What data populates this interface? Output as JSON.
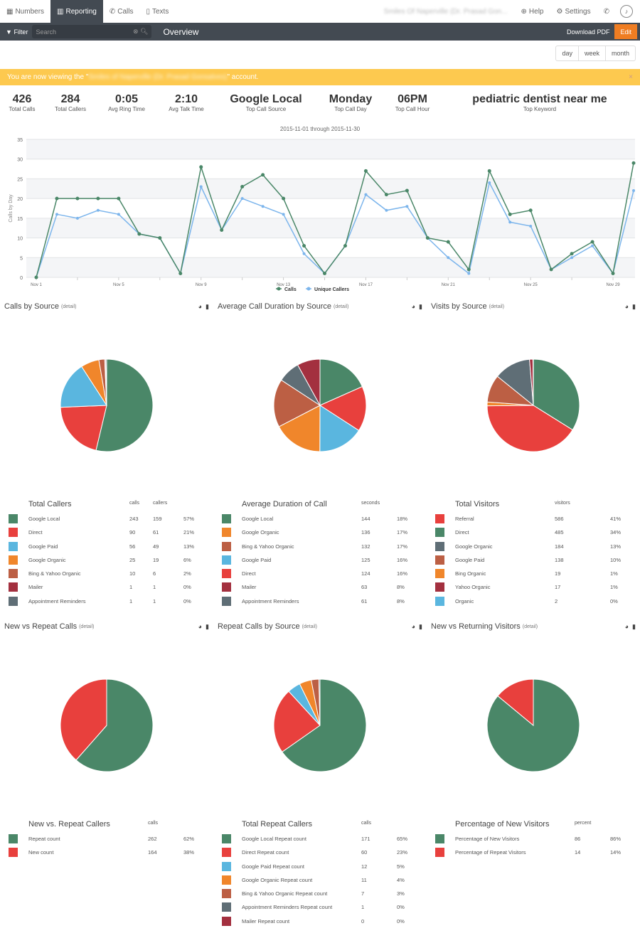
{
  "nav": {
    "items": [
      {
        "icon": "grid-icon",
        "label": "Numbers"
      },
      {
        "icon": "bar-chart-icon",
        "label": "Reporting",
        "active": true
      },
      {
        "icon": "phone-icon",
        "label": "Calls"
      },
      {
        "icon": "mobile-icon",
        "label": "Texts"
      }
    ],
    "account": "Smiles Of Naperville (Dr. Prasad Gon...",
    "help": "Help",
    "settings": "Settings"
  },
  "toolbar": {
    "filter": "Filter",
    "search_placeholder": "Search",
    "title": "Overview",
    "download": "Download PDF",
    "edit": "Edit"
  },
  "range": [
    "day",
    "week",
    "month"
  ],
  "banner": {
    "pre": "You are now viewing the \"",
    "account": "Smiles of Naperville (Dr. Prasad Gonsalves)",
    "post": "\" account.",
    "close": "×"
  },
  "stats": [
    {
      "v": "426",
      "l": "Total Calls"
    },
    {
      "v": "284",
      "l": "Total Callers"
    },
    {
      "v": "0:05",
      "l": "Avg Ring Time"
    },
    {
      "v": "2:10",
      "l": "Avg Talk Time"
    },
    {
      "v": "Google Local",
      "l": "Top Call Source"
    },
    {
      "v": "Monday",
      "l": "Top Call Day"
    },
    {
      "v": "06PM",
      "l": "Top Call Hour"
    },
    {
      "v": "pediatric dentist near me",
      "l": "Top Keyword"
    }
  ],
  "colors": {
    "green": "#4a8768",
    "red": "#e8403d",
    "blue": "#5ab6df",
    "orange": "#f0862b",
    "brown": "#bc5f44",
    "darkred": "#a3303f",
    "gray": "#5f6e76",
    "calls_line": "#4a8768",
    "unique_line": "#7cb5ec"
  },
  "chart_data": {
    "type": "line",
    "title": "2015-11-01 through 2015-11-30",
    "ylabel": "Calls by Day",
    "ylim": [
      0,
      35
    ],
    "yticks": [
      0,
      5,
      10,
      15,
      20,
      25,
      30,
      35
    ],
    "x": [
      "Nov 1",
      "Nov 2",
      "Nov 3",
      "Nov 4",
      "Nov 5",
      "Nov 6",
      "Nov 7",
      "Nov 8",
      "Nov 9",
      "Nov 10",
      "Nov 11",
      "Nov 12",
      "Nov 13",
      "Nov 14",
      "Nov 15",
      "Nov 16",
      "Nov 17",
      "Nov 18",
      "Nov 19",
      "Nov 20",
      "Nov 21",
      "Nov 22",
      "Nov 23",
      "Nov 24",
      "Nov 25",
      "Nov 26",
      "Nov 27",
      "Nov 28",
      "Nov 29",
      "Nov 30"
    ],
    "xticks": [
      "Nov 1",
      "Nov 5",
      "Nov 9",
      "Nov 13",
      "Nov 17",
      "Nov 21",
      "Nov 25",
      "Nov 29"
    ],
    "legend": "bottom",
    "grid": true,
    "series": [
      {
        "name": "Calls",
        "values": [
          0,
          20,
          20,
          20,
          20,
          11,
          10,
          1,
          28,
          12,
          23,
          26,
          20,
          8,
          1,
          8,
          27,
          21,
          22,
          10,
          9,
          2,
          27,
          16,
          17,
          2,
          6,
          9,
          1,
          29
        ]
      },
      {
        "name": "Unique Callers",
        "values": [
          0,
          16,
          15,
          17,
          16,
          11,
          10,
          1,
          23,
          12,
          20,
          18,
          16,
          6,
          1,
          8,
          21,
          17,
          18,
          10,
          5,
          1,
          24,
          14,
          13,
          2,
          5,
          8,
          1,
          22
        ]
      }
    ]
  },
  "detail": "(detail)",
  "panels": [
    {
      "title": "Calls by Source",
      "table": "Total Callers",
      "cols": [
        "calls",
        "callers"
      ],
      "rows": [
        [
          "green",
          "Google Local",
          "243",
          "159",
          "57%"
        ],
        [
          "red",
          "Direct",
          "90",
          "61",
          "21%"
        ],
        [
          "blue",
          "Google Paid",
          "56",
          "49",
          "13%"
        ],
        [
          "orange",
          "Google Organic",
          "25",
          "19",
          "6%"
        ],
        [
          "brown",
          "Bing & Yahoo Organic",
          "10",
          "6",
          "2%"
        ],
        [
          "darkred",
          "Mailer",
          "1",
          "1",
          "0%"
        ],
        [
          "gray",
          "Appointment Reminders",
          "1",
          "1",
          "0%"
        ]
      ],
      "pie_order": [
        0,
        1,
        2,
        3,
        4,
        5,
        6
      ]
    },
    {
      "title": "Average Call Duration by Source",
      "table": "Average Duration of Call",
      "cols": [
        "seconds"
      ],
      "rows": [
        [
          "green",
          "Google Local",
          "144",
          "18%"
        ],
        [
          "orange",
          "Google Organic",
          "136",
          "17%"
        ],
        [
          "brown",
          "Bing & Yahoo Organic",
          "132",
          "17%"
        ],
        [
          "blue",
          "Google Paid",
          "125",
          "16%"
        ],
        [
          "red",
          "Direct",
          "124",
          "16%"
        ],
        [
          "darkred",
          "Mailer",
          "63",
          "8%"
        ],
        [
          "gray",
          "Appointment Reminders",
          "61",
          "8%"
        ]
      ],
      "pie_order": [
        0,
        4,
        3,
        1,
        2,
        6,
        5
      ]
    },
    {
      "title": "Visits by Source",
      "table": "Total Visitors",
      "cols": [
        "visitors"
      ],
      "rows": [
        [
          "red",
          "Referral",
          "586",
          "41%"
        ],
        [
          "green",
          "Direct",
          "485",
          "34%"
        ],
        [
          "gray",
          "Google Organic",
          "184",
          "13%"
        ],
        [
          "brown",
          "Google Paid",
          "138",
          "10%"
        ],
        [
          "orange",
          "Bing Organic",
          "19",
          "1%"
        ],
        [
          "darkred",
          "Yahoo Organic",
          "17",
          "1%"
        ],
        [
          "blue",
          "Organic",
          "2",
          "0%"
        ]
      ],
      "pie_order": [
        1,
        0,
        4,
        3,
        2,
        5,
        6
      ]
    },
    {
      "title": "New vs Repeat Calls",
      "table": "New vs. Repeat Callers",
      "cols": [
        "calls"
      ],
      "rows": [
        [
          "green",
          "Repeat count",
          "262",
          "62%"
        ],
        [
          "red",
          "New count",
          "164",
          "38%"
        ]
      ],
      "pie_order": [
        0,
        1
      ]
    },
    {
      "title": "Repeat Calls by Source",
      "table": "Total Repeat Callers",
      "cols": [
        "calls"
      ],
      "rows": [
        [
          "green",
          "Google Local Repeat count",
          "171",
          "65%"
        ],
        [
          "red",
          "Direct Repeat count",
          "60",
          "23%"
        ],
        [
          "blue",
          "Google Paid Repeat count",
          "12",
          "5%"
        ],
        [
          "orange",
          "Google Organic Repeat count",
          "11",
          "4%"
        ],
        [
          "brown",
          "Bing & Yahoo Organic Repeat count",
          "7",
          "3%"
        ],
        [
          "gray",
          "Appointment Reminders Repeat count",
          "1",
          "0%"
        ],
        [
          "darkred",
          "Mailer Repeat count",
          "0",
          "0%"
        ]
      ],
      "pie_order": [
        0,
        1,
        2,
        3,
        4,
        5,
        6
      ]
    },
    {
      "title": "New vs Returning Visitors",
      "table": "Percentage of New Visitors",
      "cols": [
        "percent"
      ],
      "rows": [
        [
          "green",
          "Percentage of New Visitors",
          "86",
          "86%"
        ],
        [
          "red",
          "Percentage of Repeat Visitors",
          "14",
          "14%"
        ]
      ],
      "pie_order": [
        0,
        1
      ]
    }
  ]
}
